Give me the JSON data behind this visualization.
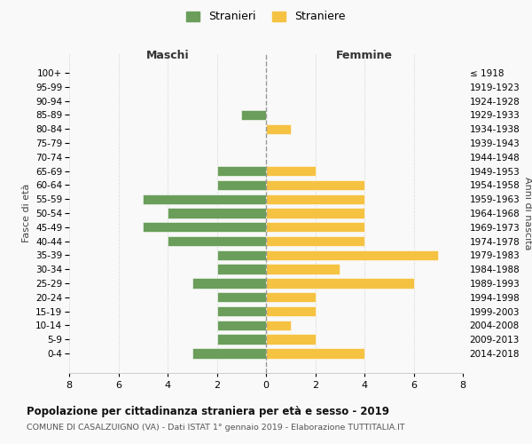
{
  "age_groups": [
    "100+",
    "95-99",
    "90-94",
    "85-89",
    "80-84",
    "75-79",
    "70-74",
    "65-69",
    "60-64",
    "55-59",
    "50-54",
    "45-49",
    "40-44",
    "35-39",
    "30-34",
    "25-29",
    "20-24",
    "15-19",
    "10-14",
    "5-9",
    "0-4"
  ],
  "birth_years": [
    "≤ 1918",
    "1919-1923",
    "1924-1928",
    "1929-1933",
    "1934-1938",
    "1939-1943",
    "1944-1948",
    "1949-1953",
    "1954-1958",
    "1959-1963",
    "1964-1968",
    "1969-1973",
    "1974-1978",
    "1979-1983",
    "1984-1988",
    "1989-1993",
    "1994-1998",
    "1999-2003",
    "2004-2008",
    "2009-2013",
    "2014-2018"
  ],
  "males": [
    0,
    0,
    0,
    1,
    0,
    0,
    0,
    2,
    2,
    5,
    4,
    5,
    4,
    2,
    2,
    3,
    2,
    2,
    2,
    2,
    3
  ],
  "females": [
    0,
    0,
    0,
    0,
    1,
    0,
    0,
    2,
    4,
    4,
    4,
    4,
    4,
    7,
    3,
    6,
    2,
    2,
    1,
    2,
    4
  ],
  "male_color": "#6a9e5a",
  "female_color": "#f5c242",
  "male_label": "Stranieri",
  "female_label": "Straniere",
  "title": "Popolazione per cittadinanza straniera per età e sesso - 2019",
  "subtitle": "COMUNE DI CASALZUIGNO (VA) - Dati ISTAT 1° gennaio 2019 - Elaborazione TUTTITALIA.IT",
  "ylabel_left": "Fasce di età",
  "ylabel_right": "Anni di nascita",
  "xlabel_left": "Maschi",
  "xlabel_right": "Femmine",
  "xlim": 8,
  "background_color": "#f9f9f9",
  "grid_color": "#cccccc"
}
